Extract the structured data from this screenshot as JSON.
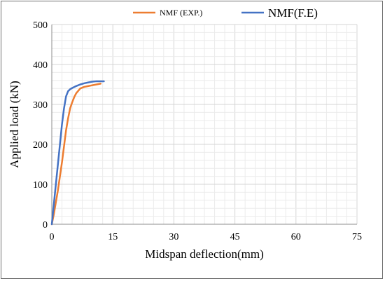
{
  "chart_data": {
    "type": "line",
    "title": "",
    "xlabel": "Midspan deflection(mm)",
    "ylabel": "Applied load (kN)",
    "xlim": [
      0,
      75
    ],
    "ylim": [
      0,
      500
    ],
    "xticks": [
      0,
      15,
      30,
      45,
      60,
      75
    ],
    "yticks": [
      0,
      100,
      200,
      300,
      400,
      500
    ],
    "grid": true,
    "legend_position": "top",
    "series": [
      {
        "name": "NMF (EXP.)",
        "color": "#ED7D31",
        "x": [
          0,
          0.5,
          1,
          1.5,
          2,
          2.5,
          3,
          3.5,
          4,
          4.5,
          5,
          5.5,
          6,
          7,
          8,
          9,
          10,
          11,
          12
        ],
        "y": [
          0,
          25,
          55,
          85,
          120,
          155,
          195,
          235,
          265,
          290,
          305,
          318,
          328,
          340,
          344,
          346,
          348,
          350,
          352
        ]
      },
      {
        "name": "NMF(F.E)",
        "color": "#4472C4",
        "x": [
          0,
          0.5,
          1,
          1.5,
          2,
          2.5,
          3,
          3.5,
          4,
          4.5,
          5,
          6,
          7,
          8,
          9,
          10,
          11,
          12,
          12.8
        ],
        "y": [
          0,
          50,
          100,
          150,
          200,
          250,
          290,
          320,
          333,
          338,
          341,
          346,
          350,
          353,
          355,
          357,
          358,
          358,
          358
        ]
      }
    ]
  }
}
